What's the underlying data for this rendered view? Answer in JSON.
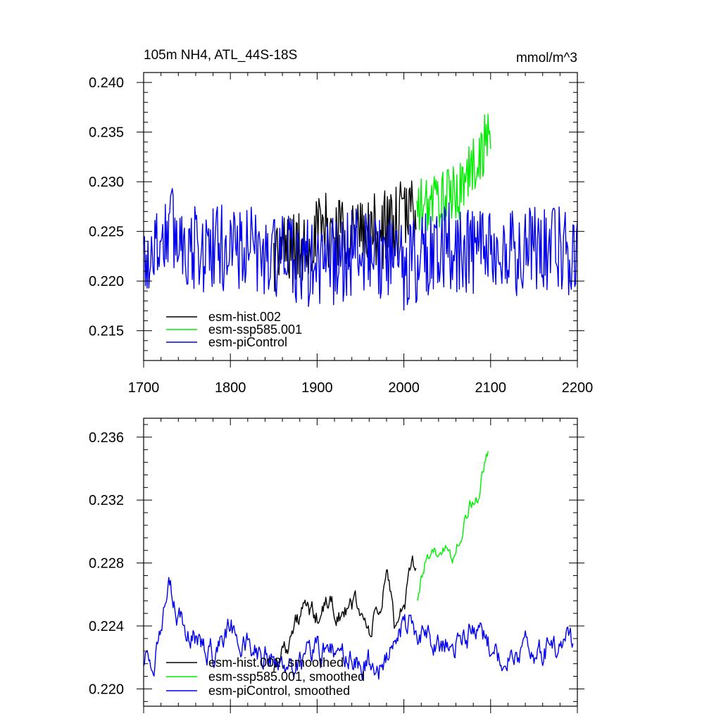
{
  "chart_data": [
    {
      "type": "line",
      "title_left": "105m NH4, ATL_44S-18S",
      "title_right": "mmol/m^3",
      "xlim": [
        1700,
        2200
      ],
      "ylim": [
        0.212,
        0.241
      ],
      "x_ticks": [
        1700,
        1800,
        1900,
        2000,
        2100,
        2200
      ],
      "x_tick_labels": [
        "1700",
        "1800",
        "1900",
        "2000",
        "2100",
        "2200"
      ],
      "y_ticks": [
        0.215,
        0.22,
        0.225,
        0.23,
        0.235,
        0.24
      ],
      "y_tick_labels": [
        "0.215",
        "0.220",
        "0.225",
        "0.230",
        "0.235",
        "0.240"
      ],
      "series": [
        {
          "name": "esm-hist.002",
          "color": "#000000",
          "x_range": [
            1850,
            2014
          ],
          "anchor_x": [
            1850,
            1870,
            1880,
            1890,
            1910,
            1930,
            1950,
            1970,
            1990,
            2000,
            2014
          ],
          "anchor_y": [
            0.2225,
            0.2235,
            0.223,
            0.2245,
            0.225,
            0.2255,
            0.2245,
            0.225,
            0.2255,
            0.2265,
            0.2275
          ],
          "amplitude": 0.004
        },
        {
          "name": "esm-ssp585.001",
          "color": "#00ee00",
          "x_range": [
            2015,
            2100
          ],
          "anchor_x": [
            2015,
            2030,
            2045,
            2060,
            2075,
            2090,
            2100
          ],
          "anchor_y": [
            0.227,
            0.228,
            0.2285,
            0.2285,
            0.231,
            0.233,
            0.2355
          ],
          "amplitude": 0.003
        },
        {
          "name": "esm-piControl",
          "color": "#0000ee",
          "x_range": [
            1700,
            2200
          ],
          "anchor_x": [
            1700,
            1730,
            1760,
            1800,
            1850,
            1900,
            1950,
            2000,
            2050,
            2100,
            2150,
            2200
          ],
          "anchor_y": [
            0.222,
            0.2255,
            0.223,
            0.2235,
            0.2225,
            0.2215,
            0.223,
            0.2215,
            0.2235,
            0.2225,
            0.223,
            0.223
          ],
          "amplitude": 0.0045
        }
      ],
      "legend_position": "bottom-left"
    },
    {
      "type": "line",
      "xlim": [
        1700,
        2200
      ],
      "ylim": [
        0.2189,
        0.2372
      ],
      "x_ticks": [
        1700,
        1800,
        1900,
        2000,
        2100,
        2200
      ],
      "y_ticks": [
        0.22,
        0.224,
        0.228,
        0.232,
        0.236
      ],
      "y_tick_labels": [
        "0.220",
        "0.224",
        "0.228",
        "0.232",
        "0.236"
      ],
      "series": [
        {
          "name": "esm-hist.002, smoothed",
          "color": "#000000",
          "x_range": [
            1850,
            2014
          ],
          "anchor_x": [
            1850,
            1860,
            1870,
            1885,
            1900,
            1915,
            1930,
            1945,
            1960,
            1975,
            1980,
            1990,
            2000,
            2014
          ],
          "anchor_y": [
            0.2215,
            0.2225,
            0.2235,
            0.225,
            0.2245,
            0.2255,
            0.2245,
            0.2255,
            0.2235,
            0.2255,
            0.2275,
            0.224,
            0.2255,
            0.228
          ],
          "amplitude": 0.0008
        },
        {
          "name": "esm-ssp585.001, smoothed",
          "color": "#00ee00",
          "x_range": [
            2015,
            2097
          ],
          "anchor_x": [
            2015,
            2025,
            2035,
            2045,
            2055,
            2065,
            2075,
            2085,
            2097
          ],
          "anchor_y": [
            0.226,
            0.228,
            0.2283,
            0.2295,
            0.228,
            0.23,
            0.2315,
            0.2325,
            0.235
          ],
          "amplitude": 0.0006
        },
        {
          "name": "esm-piControl, smoothed",
          "color": "#0000ee",
          "x_range": [
            1700,
            2195
          ],
          "anchor_x": [
            1700,
            1715,
            1730,
            1745,
            1760,
            1780,
            1800,
            1830,
            1860,
            1890,
            1920,
            1950,
            1975,
            2000,
            2030,
            2060,
            2090,
            2110,
            2130,
            2160,
            2195
          ],
          "anchor_y": [
            0.222,
            0.2225,
            0.226,
            0.224,
            0.223,
            0.2225,
            0.224,
            0.2225,
            0.2215,
            0.222,
            0.2225,
            0.2215,
            0.2215,
            0.224,
            0.223,
            0.223,
            0.224,
            0.2215,
            0.2225,
            0.2225,
            0.2228
          ],
          "amplitude": 0.001
        }
      ],
      "legend_position": "bottom-left"
    }
  ]
}
